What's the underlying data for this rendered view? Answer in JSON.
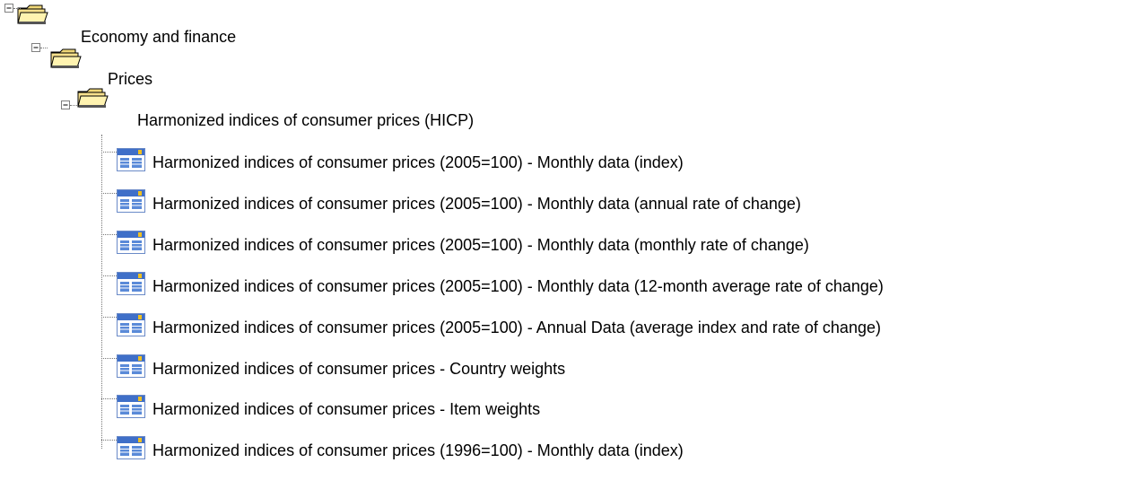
{
  "tree": {
    "label": "Economy and finance",
    "children": [
      {
        "label": "Prices",
        "children": [
          {
            "label": "Harmonized indices of consumer prices (HICP)",
            "children": [
              {
                "label": "Harmonized indices of consumer prices (2005=100) - Monthly data (index)"
              },
              {
                "label": "Harmonized indices of consumer prices (2005=100) - Monthly data (annual rate of change)"
              },
              {
                "label": "Harmonized indices of consumer prices (2005=100) - Monthly data (monthly rate of change)"
              },
              {
                "label": "Harmonized indices of consumer prices (2005=100) - Monthly data (12-month average rate of change)"
              },
              {
                "label": "Harmonized indices of consumer prices (2005=100) - Annual Data (average index and rate of change)"
              },
              {
                "label": "Harmonized indices of consumer prices - Country weights"
              },
              {
                "label": "Harmonized indices of consumer prices - Item weights"
              },
              {
                "label": "Harmonized indices of consumer prices (1996=100) - Monthly data (index)"
              }
            ]
          }
        ]
      }
    ]
  }
}
